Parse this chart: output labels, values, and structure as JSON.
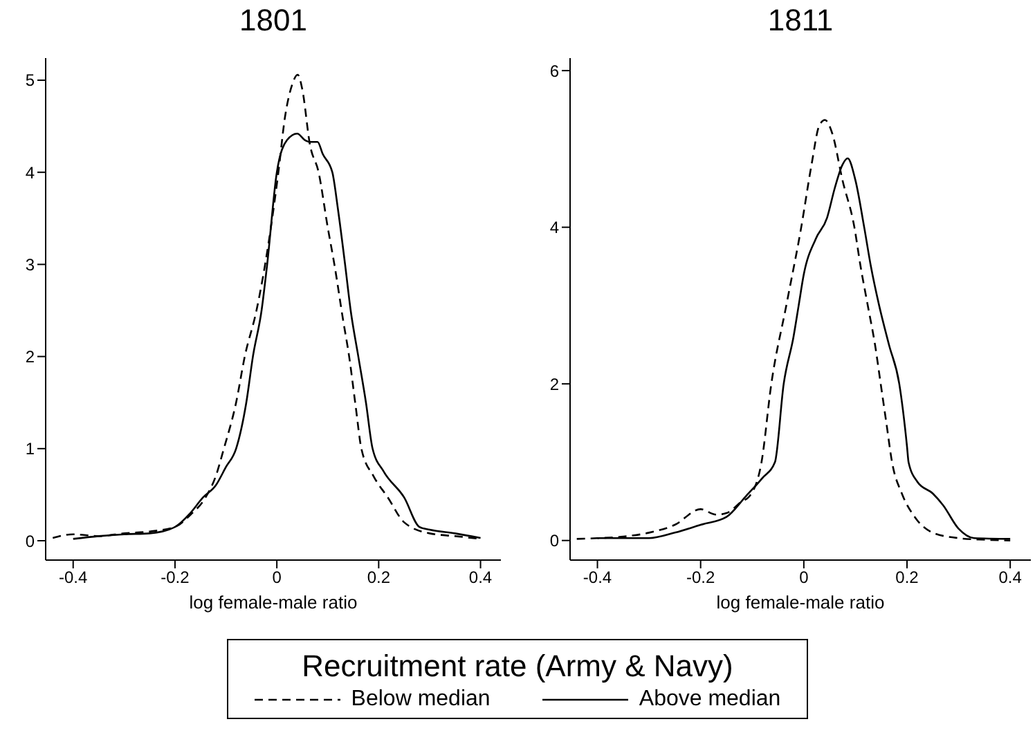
{
  "chart_data": [
    {
      "type": "line",
      "title": "1801",
      "xlabel": "log female-male ratio",
      "xlim": [
        -0.454,
        0.44
      ],
      "ylim": [
        -0.21,
        5.24
      ],
      "xticks": [
        -0.4,
        -0.2,
        0,
        0.2,
        0.4
      ],
      "yticks": [
        0,
        1,
        2,
        3,
        4,
        5
      ],
      "legend": "bottom",
      "legend_title": "Recruitment rate (Army & Navy)",
      "series": [
        {
          "name": "Below median",
          "color": "#000000",
          "line_style": "dashed",
          "x": [
            -0.44,
            -0.4,
            -0.35,
            -0.3,
            -0.25,
            -0.2,
            -0.17,
            -0.14,
            -0.12,
            -0.104,
            -0.08,
            -0.063,
            -0.04,
            -0.023,
            0.003,
            0.016,
            0.03,
            0.041,
            0.05,
            0.065,
            0.082,
            0.1,
            0.113,
            0.13,
            0.142,
            0.155,
            0.166,
            0.19,
            0.218,
            0.25,
            0.3,
            0.35,
            0.4
          ],
          "values": [
            0.03,
            0.07,
            0.05,
            0.08,
            0.1,
            0.15,
            0.28,
            0.47,
            0.7,
            1.0,
            1.5,
            2.0,
            2.5,
            3.0,
            4.0,
            4.6,
            4.95,
            5.06,
            4.9,
            4.3,
            4.0,
            3.4,
            3.0,
            2.4,
            2.0,
            1.45,
            1.0,
            0.7,
            0.47,
            0.2,
            0.08,
            0.05,
            0.02
          ]
        },
        {
          "name": "Above median",
          "color": "#000000",
          "line_style": "solid",
          "x": [
            -0.4,
            -0.35,
            -0.3,
            -0.25,
            -0.2,
            -0.17,
            -0.145,
            -0.12,
            -0.1,
            -0.08,
            -0.06,
            -0.047,
            -0.03,
            -0.019,
            0.0,
            0.02,
            0.04,
            0.055,
            0.065,
            0.08,
            0.09,
            0.109,
            0.12,
            0.134,
            0.145,
            0.16,
            0.175,
            0.188,
            0.21,
            0.25,
            0.28,
            0.3,
            0.35,
            0.4
          ],
          "values": [
            0.02,
            0.05,
            0.07,
            0.08,
            0.15,
            0.3,
            0.47,
            0.6,
            0.8,
            1.0,
            1.5,
            2.0,
            2.5,
            3.0,
            4.0,
            4.35,
            4.42,
            4.35,
            4.33,
            4.33,
            4.2,
            4.0,
            3.6,
            3.0,
            2.5,
            2.0,
            1.5,
            1.0,
            0.75,
            0.47,
            0.15,
            0.12,
            0.08,
            0.03
          ]
        }
      ]
    },
    {
      "type": "line",
      "title": "1811",
      "xlabel": "log female-male ratio",
      "xlim": [
        -0.453,
        0.44
      ],
      "ylim": [
        -0.25,
        6.16
      ],
      "xticks": [
        -0.4,
        -0.2,
        0,
        0.2,
        0.4
      ],
      "yticks": [
        0,
        2,
        4,
        6
      ],
      "series": [
        {
          "color": "#000000",
          "line_style": "dashed",
          "x": [
            -0.44,
            -0.4,
            -0.35,
            -0.3,
            -0.25,
            -0.2,
            -0.17,
            -0.15,
            -0.12,
            -0.106,
            -0.082,
            -0.063,
            -0.034,
            -0.005,
            0.015,
            0.03,
            0.041,
            0.055,
            0.075,
            0.098,
            0.11,
            0.124,
            0.138,
            0.149,
            0.16,
            0.171,
            0.19,
            0.215,
            0.25,
            0.3,
            0.35,
            0.4
          ],
          "values": [
            0.02,
            0.03,
            0.05,
            0.1,
            0.2,
            0.4,
            0.33,
            0.35,
            0.5,
            0.56,
            1.0,
            2.0,
            3.0,
            4.0,
            4.8,
            5.3,
            5.37,
            5.2,
            4.6,
            4.0,
            3.5,
            3.0,
            2.5,
            2.0,
            1.5,
            1.0,
            0.6,
            0.3,
            0.1,
            0.03,
            0.01,
            0.0
          ]
        },
        {
          "color": "#000000",
          "line_style": "solid",
          "x": [
            -0.4,
            -0.35,
            -0.3,
            -0.25,
            -0.2,
            -0.15,
            -0.113,
            -0.08,
            -0.056,
            -0.039,
            -0.02,
            -0.01,
            0.0,
            0.023,
            0.045,
            0.06,
            0.075,
            0.085,
            0.1,
            0.117,
            0.13,
            0.146,
            0.165,
            0.185,
            0.2,
            0.203,
            0.22,
            0.25,
            0.27,
            0.3,
            0.33,
            0.4
          ],
          "values": [
            0.03,
            0.03,
            0.03,
            0.1,
            0.2,
            0.3,
            0.56,
            0.8,
            1.0,
            2.0,
            2.6,
            3.0,
            3.4,
            3.85,
            4.12,
            4.5,
            4.8,
            4.88,
            4.6,
            4.0,
            3.5,
            3.0,
            2.5,
            2.0,
            1.2,
            1.0,
            0.75,
            0.6,
            0.45,
            0.15,
            0.03,
            0.02
          ]
        }
      ]
    }
  ]
}
